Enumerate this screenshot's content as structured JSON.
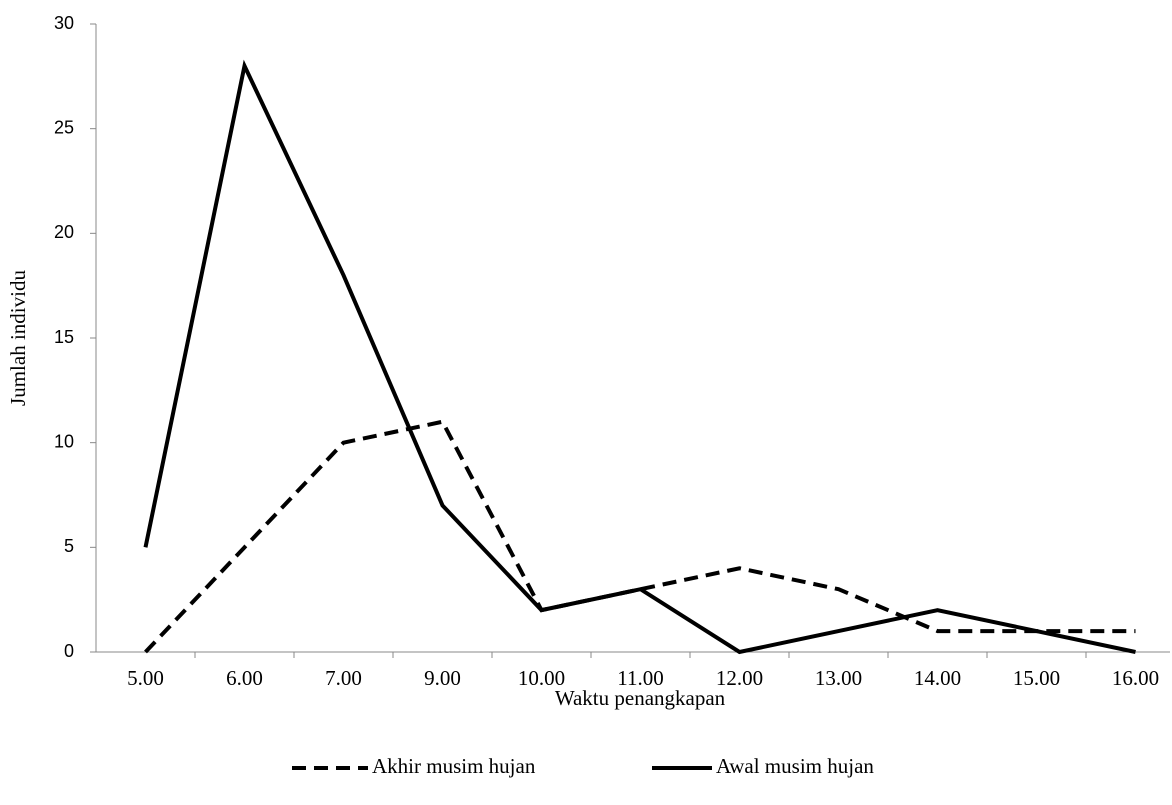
{
  "chart_data": {
    "type": "line",
    "x_label": "Waktu penangkapan",
    "y_label": "Jumlah individu",
    "categories": [
      "5.00",
      "6.00",
      "7.00",
      "9.00",
      "10.00",
      "11.00",
      "12.00",
      "13.00",
      "14.00",
      "15.00",
      "16.00"
    ],
    "series": [
      {
        "name": "Akhir musim hujan",
        "color": "#000000",
        "line_style": "dashed",
        "values": [
          0,
          5,
          10,
          11,
          2,
          3,
          4,
          3,
          1,
          1,
          1
        ]
      },
      {
        "name": "Awal musim hujan",
        "color": "#000000",
        "line_style": "solid",
        "values": [
          5,
          28,
          18,
          7,
          2,
          3,
          0,
          1,
          2,
          1,
          0
        ]
      }
    ],
    "ylim": [
      0,
      30
    ],
    "yticks": [
      0,
      5,
      10,
      15,
      20,
      25,
      30
    ],
    "grid": false,
    "legend": "bottom"
  }
}
